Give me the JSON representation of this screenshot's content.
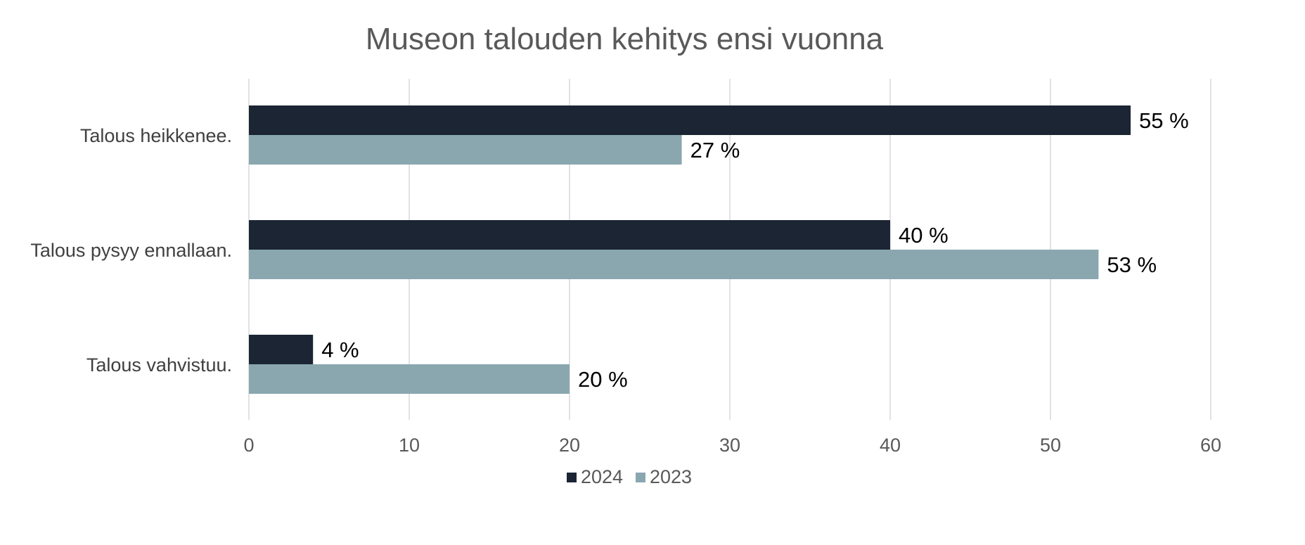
{
  "chart_data": {
    "type": "bar",
    "orientation": "horizontal",
    "title": "Museon talouden kehitys ensi vuonna",
    "xlabel": "",
    "ylabel": "",
    "categories": [
      "Talous heikkenee.",
      "Talous pysyy ennallaan.",
      "Talous vahvistuu."
    ],
    "series": [
      {
        "name": "2024",
        "color": "#1b2533",
        "values": [
          55,
          40,
          4
        ],
        "labels": [
          "55 %",
          "40 %",
          "4 %"
        ]
      },
      {
        "name": "2023",
        "color": "#8aa7b0",
        "values": [
          27,
          53,
          20
        ],
        "labels": [
          "27 %",
          "53 %",
          "20 %"
        ]
      }
    ],
    "xlim": [
      0,
      60
    ],
    "ticks": [
      0,
      10,
      20,
      30,
      40,
      50,
      60
    ],
    "tick_labels": [
      "0",
      "10",
      "20",
      "30",
      "40",
      "50",
      "60"
    ],
    "grid": true,
    "legend_position": "bottom"
  }
}
